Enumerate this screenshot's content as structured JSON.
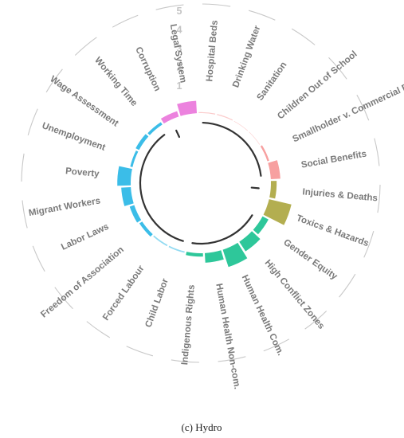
{
  "chart_data": {
    "type": "radial-bar",
    "caption": "(c) Hydro",
    "radial_ticks": [
      "1",
      "2",
      "3",
      "4",
      "5"
    ],
    "rmax": 5,
    "categories": [
      {
        "name": "Hospital Beds",
        "group": "community",
        "value": 0.1
      },
      {
        "name": "Drinking Water",
        "group": "community",
        "value": 0.1
      },
      {
        "name": "Sanitation",
        "group": "community",
        "value": 0.05
      },
      {
        "name": "Children Out of School",
        "group": "community",
        "value": 0.05
      },
      {
        "name": "Smallholder v. Commercial Farms",
        "group": "community",
        "value": 0.2
      },
      {
        "name": "Social Benefits",
        "group": "community",
        "value": 1.0
      },
      {
        "name": "Injuries & Deaths",
        "group": "health_safety",
        "value": 0.6
      },
      {
        "name": "Toxics & Hazards",
        "group": "health_safety",
        "value": 2.4
      },
      {
        "name": "Gender Equity",
        "group": "society",
        "value": 0.7
      },
      {
        "name": "High Conflict Zones",
        "group": "society",
        "value": 1.2
      },
      {
        "name": "Human Health Com.",
        "group": "society",
        "value": 1.9
      },
      {
        "name": "Human Health Non-com.",
        "group": "society",
        "value": 1.0
      },
      {
        "name": "Indigenous Rights",
        "group": "society",
        "value": 0.35
      },
      {
        "name": "Child Labor",
        "group": "labor",
        "value": 0.15
      },
      {
        "name": "Forced Labour",
        "group": "labor",
        "value": 0.15
      },
      {
        "name": "Freedom of Association",
        "group": "labor",
        "value": 0.35
      },
      {
        "name": "Labor Laws",
        "group": "labor",
        "value": 0.5
      },
      {
        "name": "Migrant Workers",
        "group": "labor",
        "value": 1.0
      },
      {
        "name": "Poverty",
        "group": "labor",
        "value": 1.4
      },
      {
        "name": "Unemployment",
        "group": "labor",
        "value": 0.25
      },
      {
        "name": "Wage Assessment",
        "group": "labor",
        "value": 0.4
      },
      {
        "name": "Working Time",
        "group": "labor",
        "value": 0.3
      },
      {
        "name": "Corruption",
        "group": "governance",
        "value": 0.6
      },
      {
        "name": "Legal System",
        "group": "governance",
        "value": 1.3
      }
    ],
    "groups": [
      {
        "id": "community",
        "color": "#f7a0a0"
      },
      {
        "id": "health_safety",
        "color": "#b3ae50"
      },
      {
        "id": "society",
        "color": "#2ec79a"
      },
      {
        "id": "labor",
        "color": "#3bbde8"
      },
      {
        "id": "governance",
        "color": "#ec82de"
      }
    ],
    "colors": {
      "label": "#7a7a7a",
      "tick": "#c4c4c4",
      "inner_arc": "#333333",
      "outer_arc": "#c8c8c8"
    },
    "grid": false
  }
}
